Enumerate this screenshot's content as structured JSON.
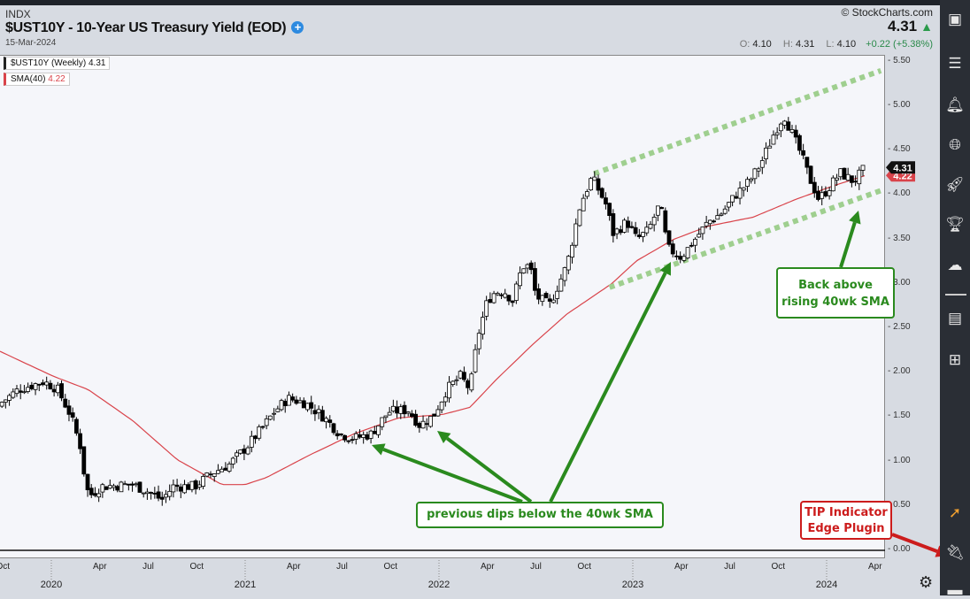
{
  "header": {
    "exchange": "INDX",
    "title": "$UST10Y - 10-Year US Treasury Yield (EOD)",
    "date": "15-Mar-2024",
    "brand": "© StockCharts.com",
    "last": "4.31",
    "open_label": "O:",
    "open": "4.10",
    "high_label": "H:",
    "high": "4.31",
    "low_label": "L:",
    "low": "4.10",
    "change": "+0.22 (+5.38%)"
  },
  "legend": {
    "series": "$UST10Y (Weekly)",
    "series_value": "4.31",
    "sma": "SMA(40)",
    "sma_value": "4.22"
  },
  "price_tags": {
    "last": "4.31",
    "sma": "4.22"
  },
  "annotations": {
    "dips": "previous dips below the 40wk SMA",
    "back_line1": "Back above",
    "back_line2": "rising 40wk SMA",
    "tip_line1": "TIP Indicator",
    "tip_line2": "Edge Plugin"
  },
  "colors": {
    "up": "#ffffff",
    "down": "#000000",
    "sma": "#d9434a",
    "channel": "#9fcf8f",
    "arrow": "#2a8a1e",
    "tip": "#cc1c1c"
  },
  "chart_data": {
    "type": "candlestick",
    "title": "$UST10Y - 10-Year US Treasury Yield (EOD)",
    "period": "weekly",
    "ylim": [
      0,
      5.6
    ],
    "yticks": [
      "0.00",
      "0.50",
      "1.00",
      "1.50",
      "2.00",
      "2.50",
      "3.00",
      "3.50",
      "4.00",
      "4.50",
      "5.00",
      "5.50"
    ],
    "xlim": [
      2019.735,
      2024.3
    ],
    "xticks": [
      {
        "t": 2019.75,
        "label": "Oct"
      },
      {
        "t": 2020.25,
        "label": "Apr"
      },
      {
        "t": 2020.5,
        "label": "Jul"
      },
      {
        "t": 2020.75,
        "label": "Oct"
      },
      {
        "t": 2021.25,
        "label": "Apr"
      },
      {
        "t": 2021.5,
        "label": "Jul"
      },
      {
        "t": 2021.75,
        "label": "Oct"
      },
      {
        "t": 2022.25,
        "label": "Apr"
      },
      {
        "t": 2022.5,
        "label": "Jul"
      },
      {
        "t": 2022.75,
        "label": "Oct"
      },
      {
        "t": 2023.25,
        "label": "Apr"
      },
      {
        "t": 2023.5,
        "label": "Jul"
      },
      {
        "t": 2023.75,
        "label": "Oct"
      },
      {
        "t": 2024.25,
        "label": "Apr"
      }
    ],
    "years": [
      {
        "t": 2020,
        "label": "2020"
      },
      {
        "t": 2021,
        "label": "2021"
      },
      {
        "t": 2022,
        "label": "2022"
      },
      {
        "t": 2023,
        "label": "2023"
      },
      {
        "t": 2024,
        "label": "2024"
      }
    ],
    "close_path": [
      [
        2019.74,
        1.66
      ],
      [
        2019.83,
        1.81
      ],
      [
        2019.96,
        1.9
      ],
      [
        2020.03,
        1.82
      ],
      [
        2020.1,
        1.52
      ],
      [
        2020.15,
        1.17
      ],
      [
        2020.18,
        0.7
      ],
      [
        2020.2,
        0.62
      ],
      [
        2020.26,
        0.72
      ],
      [
        2020.42,
        0.74
      ],
      [
        2020.49,
        0.67
      ],
      [
        2020.57,
        0.57
      ],
      [
        2020.63,
        0.72
      ],
      [
        2020.74,
        0.72
      ],
      [
        2020.83,
        0.87
      ],
      [
        2020.92,
        0.97
      ],
      [
        2021.01,
        1.17
      ],
      [
        2021.1,
        1.41
      ],
      [
        2021.15,
        1.56
      ],
      [
        2021.22,
        1.71
      ],
      [
        2021.31,
        1.66
      ],
      [
        2021.4,
        1.51
      ],
      [
        2021.49,
        1.31
      ],
      [
        2021.56,
        1.26
      ],
      [
        2021.65,
        1.31
      ],
      [
        2021.74,
        1.56
      ],
      [
        2021.84,
        1.58
      ],
      [
        2021.9,
        1.41
      ],
      [
        2021.97,
        1.51
      ],
      [
        2022.04,
        1.81
      ],
      [
        2022.11,
        1.96
      ],
      [
        2022.16,
        1.81
      ],
      [
        2022.2,
        2.41
      ],
      [
        2022.25,
        2.81
      ],
      [
        2022.29,
        2.91
      ],
      [
        2022.34,
        2.91
      ],
      [
        2022.38,
        2.81
      ],
      [
        2022.43,
        3.2
      ],
      [
        2022.47,
        3.2
      ],
      [
        2022.5,
        2.86
      ],
      [
        2022.57,
        2.76
      ],
      [
        2022.66,
        3.21
      ],
      [
        2022.73,
        3.9
      ],
      [
        2022.79,
        4.2
      ],
      [
        2022.86,
        3.9
      ],
      [
        2022.9,
        3.56
      ],
      [
        2022.97,
        3.7
      ],
      [
        2023.02,
        3.5
      ],
      [
        2023.08,
        3.6
      ],
      [
        2023.14,
        3.9
      ],
      [
        2023.18,
        3.4
      ],
      [
        2023.25,
        3.3
      ],
      [
        2023.32,
        3.5
      ],
      [
        2023.39,
        3.7
      ],
      [
        2023.46,
        3.8
      ],
      [
        2023.53,
        4.0
      ],
      [
        2023.6,
        4.15
      ],
      [
        2023.66,
        4.35
      ],
      [
        2023.73,
        4.7
      ],
      [
        2023.78,
        4.9
      ],
      [
        2023.82,
        4.7
      ],
      [
        2023.87,
        4.45
      ],
      [
        2023.91,
        4.2
      ],
      [
        2023.96,
        3.95
      ],
      [
        2024.0,
        4.05
      ],
      [
        2024.07,
        4.25
      ],
      [
        2024.14,
        4.15
      ],
      [
        2024.2,
        4.31
      ]
    ],
    "sma40_path": [
      [
        2019.735,
        2.24
      ],
      [
        2020.01,
        1.96
      ],
      [
        2020.19,
        1.81
      ],
      [
        2020.42,
        1.46
      ],
      [
        2020.65,
        1.02
      ],
      [
        2020.88,
        0.74
      ],
      [
        2021.0,
        0.74
      ],
      [
        2021.11,
        0.82
      ],
      [
        2021.33,
        1.07
      ],
      [
        2021.56,
        1.31
      ],
      [
        2021.79,
        1.49
      ],
      [
        2022.02,
        1.53
      ],
      [
        2022.16,
        1.61
      ],
      [
        2022.29,
        1.91
      ],
      [
        2022.48,
        2.31
      ],
      [
        2022.66,
        2.66
      ],
      [
        2022.89,
        3.0
      ],
      [
        2023.02,
        3.26
      ],
      [
        2023.21,
        3.5
      ],
      [
        2023.39,
        3.65
      ],
      [
        2023.62,
        3.75
      ],
      [
        2023.84,
        3.95
      ],
      [
        2024.03,
        4.1
      ],
      [
        2024.2,
        4.22
      ]
    ],
    "channel_upper": [
      [
        2022.8,
        4.24
      ],
      [
        2024.28,
        5.4
      ]
    ],
    "channel_lower": [
      [
        2022.88,
        2.96
      ],
      [
        2024.28,
        4.05
      ]
    ],
    "last_close": 4.31,
    "last_sma": 4.22
  }
}
